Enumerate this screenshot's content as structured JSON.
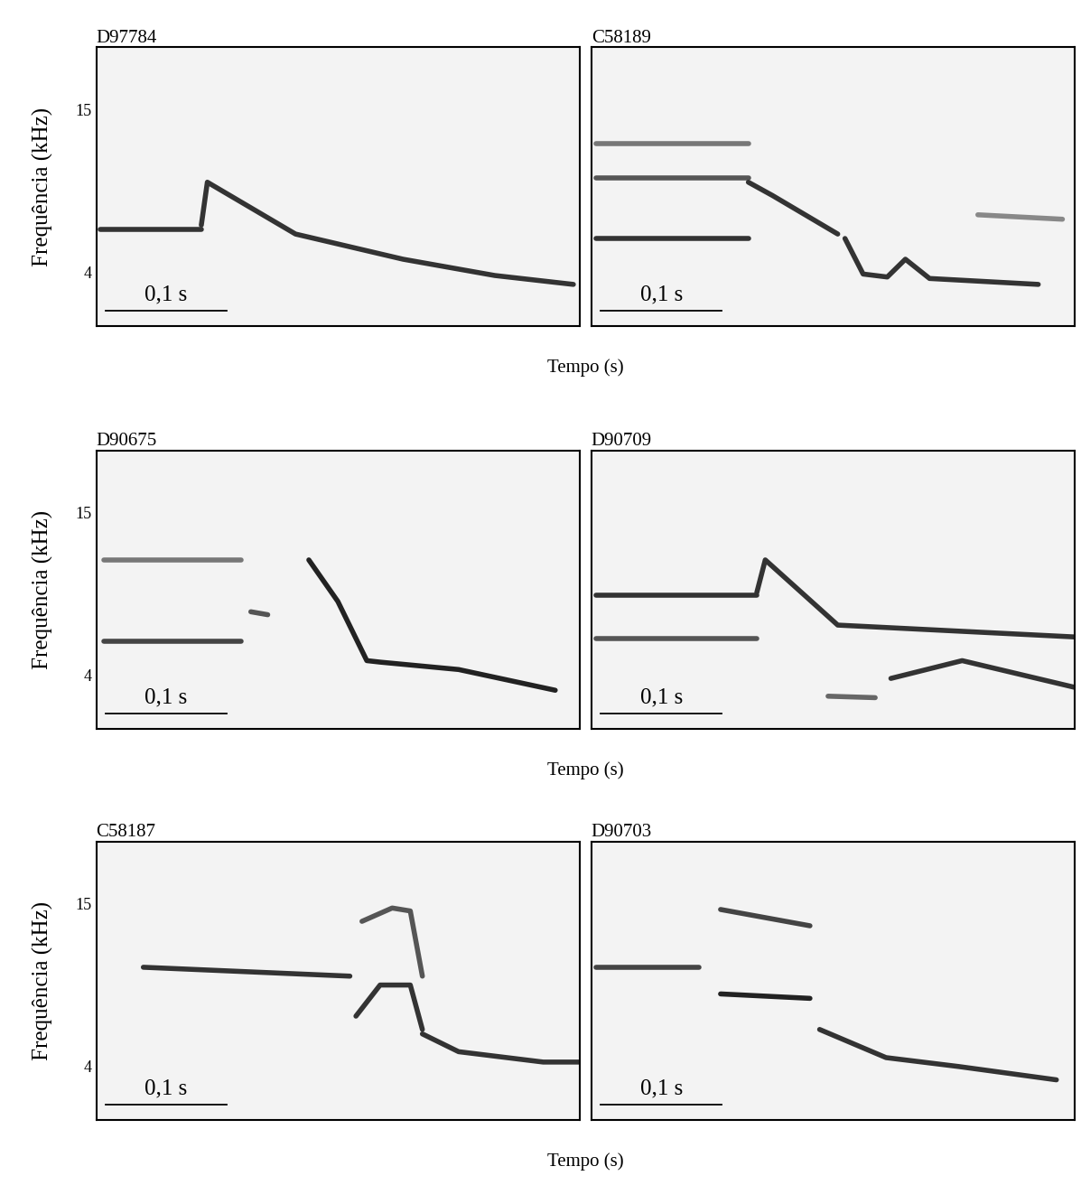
{
  "chart_data": [
    {
      "type": "line",
      "title": "D97784",
      "ylabel": "Frequência (kHz)",
      "xlabel": "Tempo (s)",
      "xlim": [
        0,
        0.4
      ],
      "ylim": [
        0.4,
        19.2
      ],
      "yticks": [
        4,
        15
      ],
      "tick_labels": "y",
      "scale_bar": {
        "length": 0.1,
        "label": "0,1 s"
      },
      "series": [
        {
          "color": "#333333",
          "x": [
            0.003,
            0.087
          ],
          "values": [
            6.9,
            6.9
          ]
        },
        {
          "color": "#333333",
          "x": [
            0.087,
            0.092,
            0.165,
            0.254,
            0.33,
            0.395
          ],
          "values": [
            7.2,
            10.1,
            6.6,
            4.9,
            3.8,
            3.2
          ]
        }
      ]
    },
    {
      "type": "line",
      "title": "C58189",
      "xlim": [
        0,
        0.4
      ],
      "ylim": [
        0.4,
        19.2
      ],
      "tick_labels": false,
      "scale_bar": {
        "length": 0.1,
        "label": "0,1 s"
      },
      "series": [
        {
          "color": "#333333",
          "x": [
            0.004,
            0.13
          ],
          "values": [
            6.3,
            6.3
          ]
        },
        {
          "color": "#555555",
          "x": [
            0.004,
            0.13
          ],
          "values": [
            10.4,
            10.4
          ]
        },
        {
          "color": "#777777",
          "x": [
            0.004,
            0.13
          ],
          "values": [
            12.7,
            12.7
          ]
        },
        {
          "color": "#333333",
          "x": [
            0.13,
            0.15,
            0.204
          ],
          "values": [
            10.1,
            9.2,
            6.6
          ]
        },
        {
          "color": "#333333",
          "x": [
            0.21,
            0.225,
            0.245,
            0.26,
            0.28,
            0.37
          ],
          "values": [
            6.3,
            3.9,
            3.7,
            4.9,
            3.6,
            3.2
          ]
        },
        {
          "color": "#888888",
          "x": [
            0.32,
            0.39
          ],
          "values": [
            7.9,
            7.6
          ]
        }
      ]
    },
    {
      "type": "line",
      "title": "D90675",
      "ylabel": "Frequência (kHz)",
      "xlabel": "Tempo (s)",
      "xlim": [
        0,
        0.4
      ],
      "ylim": [
        0.4,
        19.2
      ],
      "yticks": [
        4,
        15
      ],
      "tick_labels": "y",
      "scale_bar": {
        "length": 0.1,
        "label": "0,1 s"
      },
      "series": [
        {
          "color": "#444444",
          "x": [
            0.006,
            0.12
          ],
          "values": [
            6.3,
            6.3
          ]
        },
        {
          "color": "#777777",
          "x": [
            0.006,
            0.12
          ],
          "values": [
            11.8,
            11.8
          ]
        },
        {
          "color": "#555555",
          "x": [
            0.128,
            0.142
          ],
          "values": [
            8.3,
            8.1
          ]
        },
        {
          "color": "#222222",
          "x": [
            0.176,
            0.2,
            0.224,
            0.235,
            0.3,
            0.38
          ],
          "values": [
            11.8,
            9.0,
            5.0,
            4.9,
            4.4,
            3.0
          ]
        }
      ]
    },
    {
      "type": "line",
      "title": "D90709",
      "xlim": [
        0,
        0.4
      ],
      "ylim": [
        0.4,
        19.2
      ],
      "tick_labels": false,
      "scale_bar": {
        "length": 0.1,
        "label": "0,1 s"
      },
      "series": [
        {
          "color": "#333333",
          "x": [
            0.004,
            0.137
          ],
          "values": [
            9.4,
            9.4
          ]
        },
        {
          "color": "#555555",
          "x": [
            0.004,
            0.137
          ],
          "values": [
            6.5,
            6.5
          ]
        },
        {
          "color": "#333333",
          "x": [
            0.137,
            0.144,
            0.204,
            0.4
          ],
          "values": [
            9.6,
            11.8,
            7.4,
            6.6
          ]
        },
        {
          "color": "#666666",
          "x": [
            0.196,
            0.235
          ],
          "values": [
            2.6,
            2.5
          ]
        },
        {
          "color": "#333333",
          "x": [
            0.248,
            0.307,
            0.4
          ],
          "values": [
            3.8,
            5.0,
            3.2
          ]
        }
      ]
    },
    {
      "type": "line",
      "title": "C58187",
      "ylabel": "Frequência (kHz)",
      "xlabel": "Tempo (s)",
      "xlim": [
        0,
        0.4
      ],
      "ylim": [
        0.4,
        19.2
      ],
      "yticks": [
        4,
        15
      ],
      "tick_labels": "y",
      "scale_bar": {
        "length": 0.1,
        "label": "0,1 s"
      },
      "series": [
        {
          "color": "#333333",
          "x": [
            0.039,
            0.21
          ],
          "values": [
            10.7,
            10.1
          ]
        },
        {
          "color": "#555555",
          "x": [
            0.22,
            0.245,
            0.26,
            0.27
          ],
          "values": [
            13.8,
            14.7,
            14.5,
            10.1
          ]
        },
        {
          "color": "#333333",
          "x": [
            0.215,
            0.235,
            0.26,
            0.27
          ],
          "values": [
            7.4,
            9.5,
            9.5,
            6.5
          ]
        },
        {
          "color": "#333333",
          "x": [
            0.27,
            0.3,
            0.37,
            0.4
          ],
          "values": [
            6.2,
            5.0,
            4.3,
            4.3
          ]
        }
      ]
    },
    {
      "type": "line",
      "title": "D90703",
      "xlim": [
        0,
        0.4
      ],
      "ylim": [
        0.4,
        19.2
      ],
      "tick_labels": false,
      "scale_bar": {
        "length": 0.1,
        "label": "0,1 s"
      },
      "series": [
        {
          "color": "#444444",
          "x": [
            0.004,
            0.089
          ],
          "values": [
            10.7,
            10.7
          ]
        },
        {
          "color": "#444444",
          "x": [
            0.107,
            0.181
          ],
          "values": [
            14.6,
            13.5
          ]
        },
        {
          "color": "#222222",
          "x": [
            0.107,
            0.181
          ],
          "values": [
            8.9,
            8.6
          ]
        },
        {
          "color": "#333333",
          "x": [
            0.189,
            0.244,
            0.304,
            0.385
          ],
          "values": [
            6.5,
            4.6,
            4.0,
            3.1
          ]
        }
      ]
    }
  ]
}
